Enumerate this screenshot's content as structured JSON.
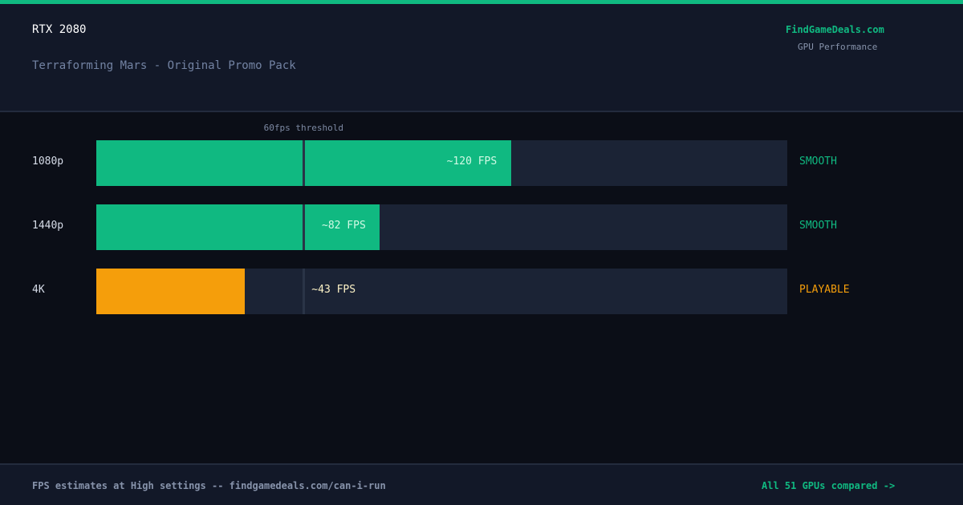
{
  "header": {
    "gpu": "RTX 2080",
    "game": "Terraforming Mars - Original Promo Pack",
    "brand": "FindGameDeals.com",
    "brand_sub": "GPU Performance"
  },
  "colors": {
    "smooth": "#10b981",
    "playable": "#f59e0b",
    "fps_label_on_green": "#d1fae5",
    "fps_label_on_orange": "#fef3c7"
  },
  "chart_data": {
    "type": "bar",
    "orientation": "horizontal",
    "categories": [
      "1080p",
      "1440p",
      "4K"
    ],
    "values": [
      120,
      82,
      43
    ],
    "value_labels": [
      "~120 FPS",
      "~82 FPS",
      "~43 FPS"
    ],
    "status": [
      "SMOOTH",
      "SMOOTH",
      "PLAYABLE"
    ],
    "xlim": [
      0,
      200
    ],
    "threshold": {
      "value": 60,
      "label": "60fps threshold"
    },
    "grid": false
  },
  "footer": {
    "left": "FPS estimates at High settings -- findgamedeals.com/can-i-run",
    "right": "All 51 GPUs compared ->"
  }
}
